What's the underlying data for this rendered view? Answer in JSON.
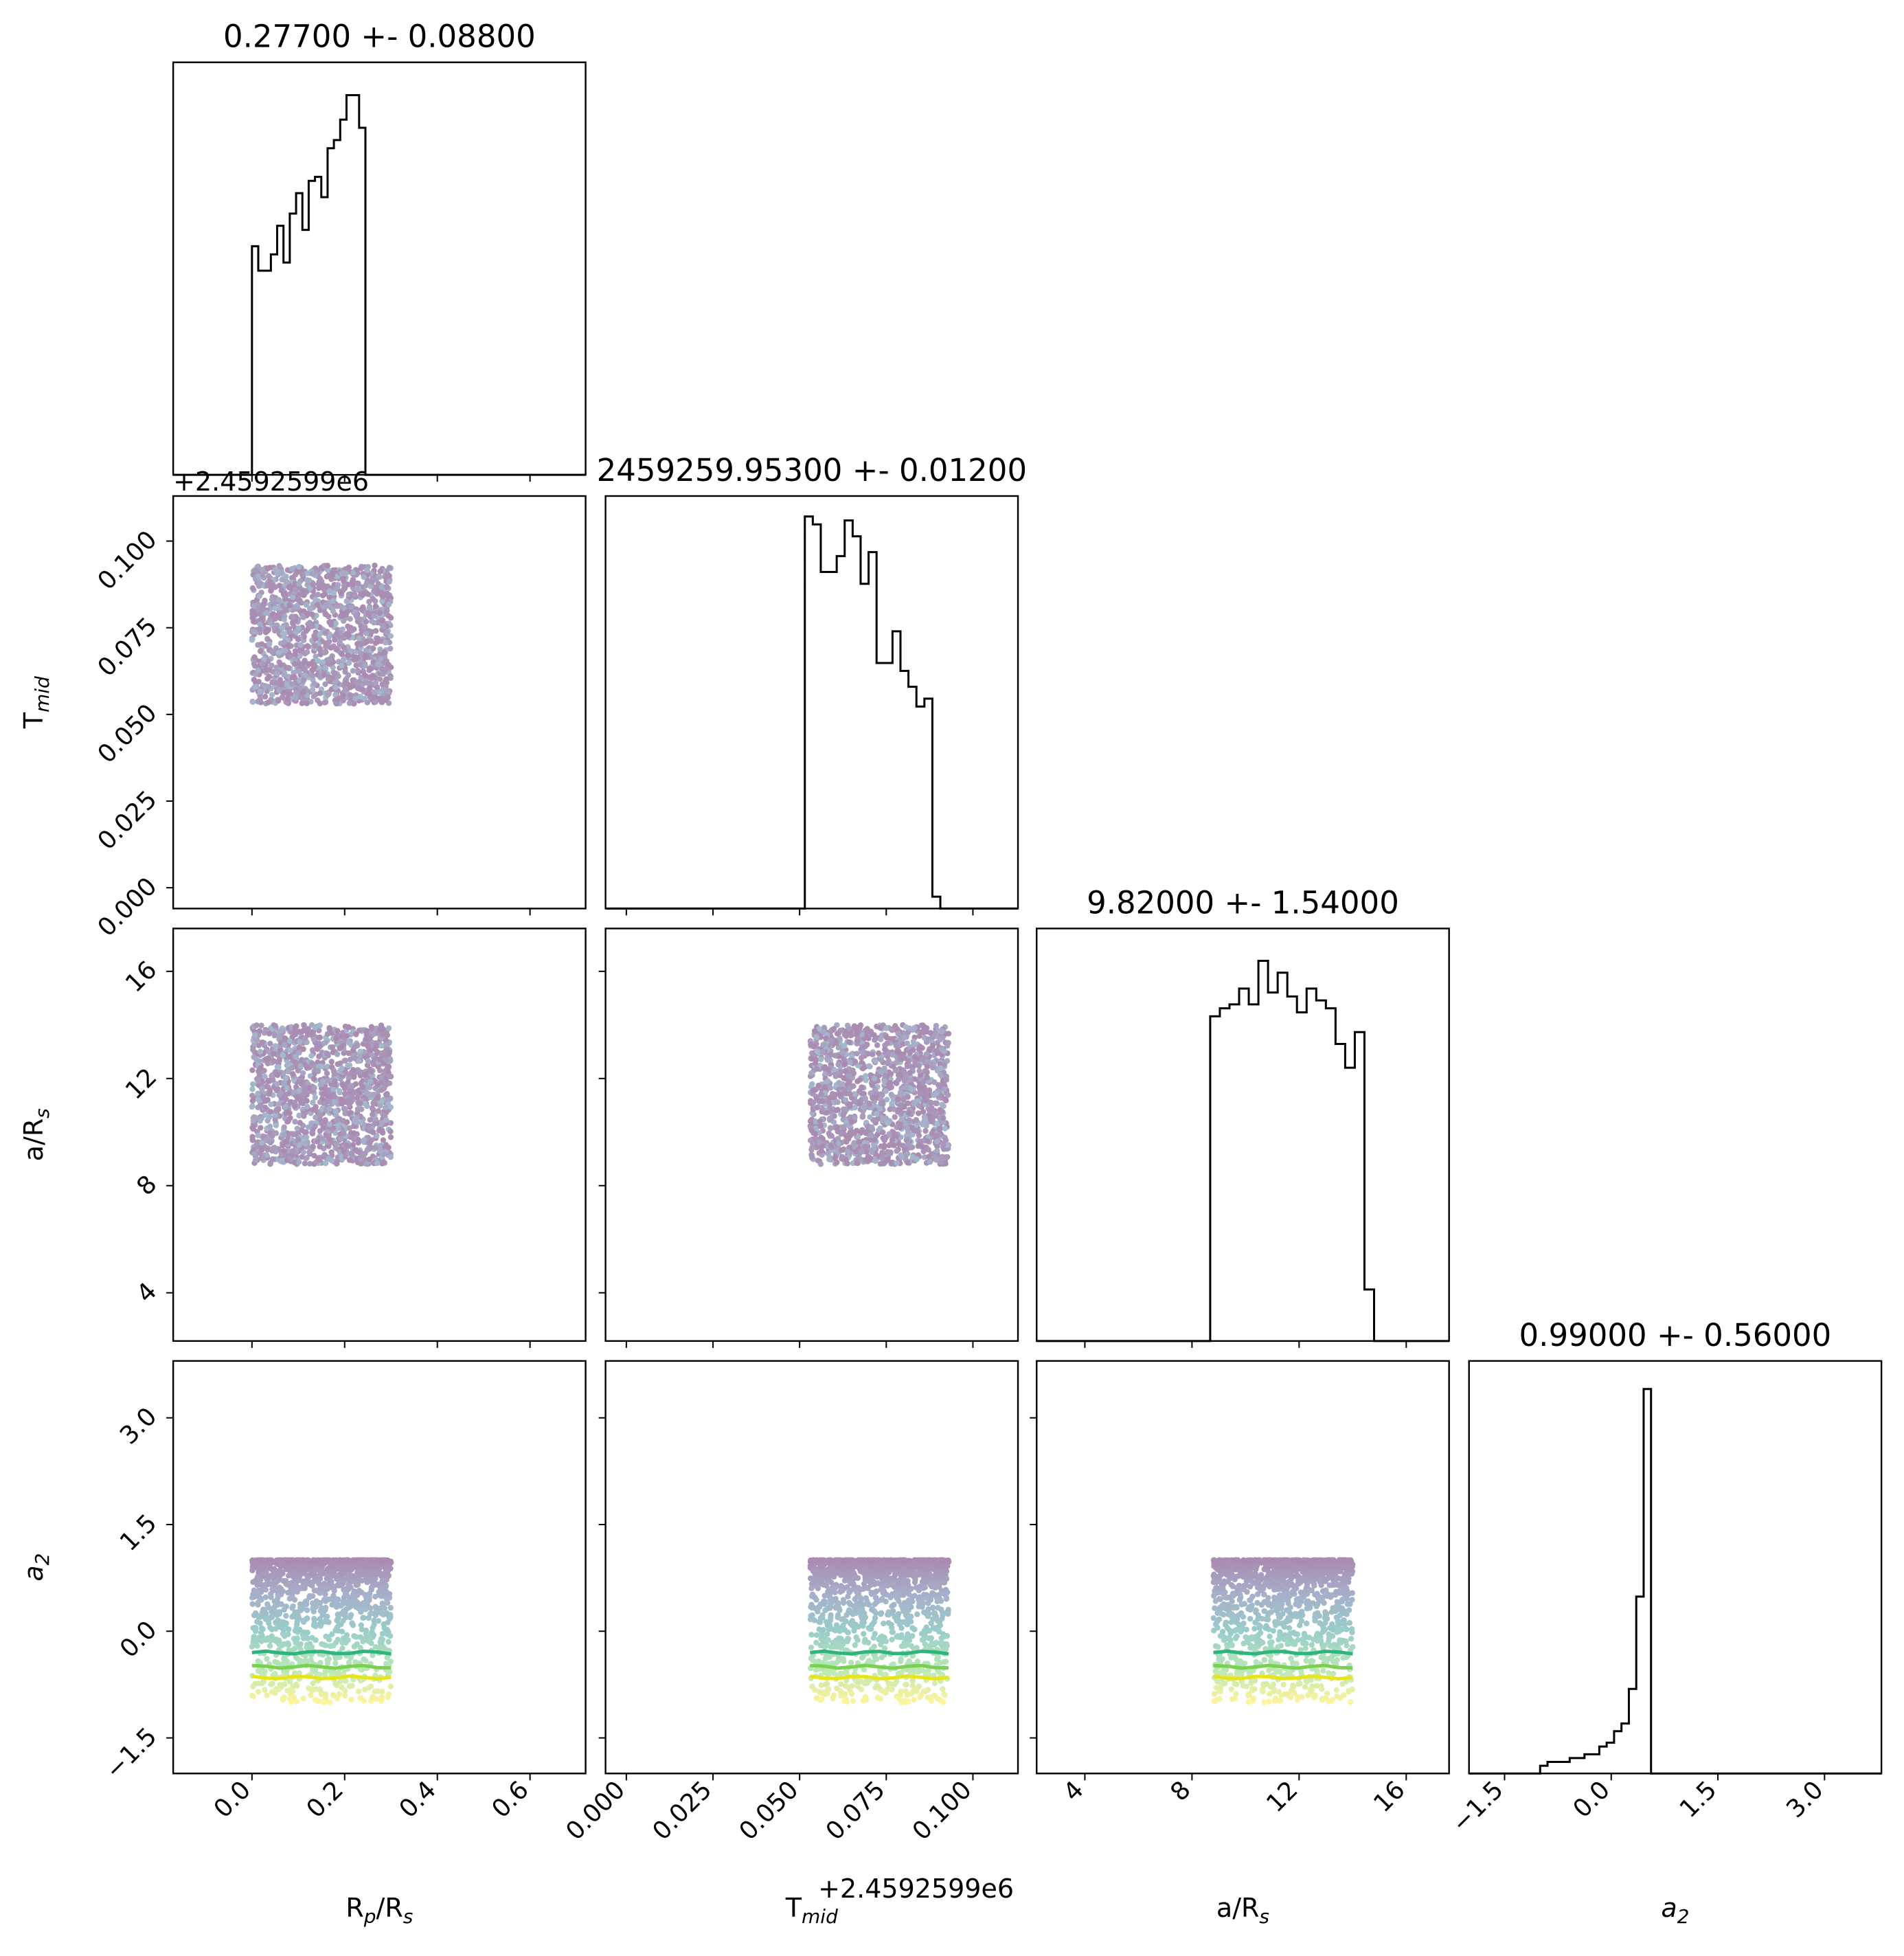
{
  "chart_data": {
    "type": "corner",
    "parameters": [
      {
        "key": "rp",
        "label": "R",
        "label_sub": "p",
        "label_tail": "/R",
        "label_sub2": "s"
      },
      {
        "key": "tmid",
        "label": "T",
        "label_sub": "mid",
        "label_tail": "",
        "label_sub2": ""
      },
      {
        "key": "ars",
        "label": "a/R",
        "label_sub": "s",
        "label_tail": "",
        "label_sub2": ""
      },
      {
        "key": "a2",
        "label": "a",
        "label_sub": "2",
        "label_tail": "",
        "label_sub2": "",
        "italic": true
      }
    ],
    "titles": [
      "0.27700 +- 0.08800",
      "2459259.95300 +- 0.01200",
      "9.82000 +- 1.54000",
      "0.99000 +- 0.56000"
    ],
    "offset_text": "+2.4592599e6",
    "ranges": [
      [
        -0.17,
        0.72
      ],
      [
        -0.006,
        0.113
      ],
      [
        2.2,
        17.6
      ],
      [
        -2.0,
        3.8
      ]
    ],
    "ticks": [
      {
        "values": [
          0.0,
          0.2,
          0.4,
          0.6
        ],
        "labels": [
          "0.0",
          "0.2",
          "0.4",
          "0.6"
        ]
      },
      {
        "values": [
          0.0,
          0.025,
          0.05,
          0.075,
          0.1
        ],
        "labels": [
          "0.000",
          "0.025",
          "0.050",
          "0.075",
          "0.100"
        ]
      },
      {
        "values": [
          4,
          8,
          12,
          16
        ],
        "labels": [
          "4",
          "8",
          "12",
          "16"
        ]
      },
      {
        "values": [
          -1.5,
          0.0,
          1.5,
          3.0
        ],
        "labels": [
          "−1.5",
          "0.0",
          "1.5",
          "3.0"
        ]
      }
    ],
    "histograms": [
      {
        "bin_start": 0.0,
        "bin_width": 0.0136,
        "counts": [
          0.56,
          0.5,
          0.5,
          0.54,
          0.61,
          0.52,
          0.64,
          0.69,
          0.6,
          0.72,
          0.73,
          0.68,
          0.8,
          0.82,
          0.87,
          0.93,
          0.93,
          0.85,
          0.0
        ],
        "ymax": 0.97
      },
      {
        "bin_start": 0.0515,
        "bin_width": 0.0023,
        "counts": [
          0.99,
          0.97,
          0.85,
          0.85,
          0.89,
          0.98,
          0.94,
          0.82,
          0.9,
          0.62,
          0.62,
          0.7,
          0.6,
          0.56,
          0.51,
          0.53,
          0.03,
          0.0
        ],
        "ymax": 1.0
      },
      {
        "bin_start": 8.68,
        "bin_width": 0.36,
        "counts": [
          0.82,
          0.84,
          0.85,
          0.89,
          0.85,
          0.96,
          0.88,
          0.93,
          0.87,
          0.83,
          0.89,
          0.86,
          0.84,
          0.75,
          0.69,
          0.78,
          0.13,
          0.0
        ],
        "ymax": 1.0
      },
      {
        "bin_start": -1.0,
        "bin_width": 0.104,
        "counts": [
          0.02,
          0.03,
          0.03,
          0.03,
          0.04,
          0.04,
          0.05,
          0.05,
          0.07,
          0.08,
          0.11,
          0.13,
          0.22,
          0.46,
          1.0,
          0.0
        ],
        "ymax": 1.03
      }
    ],
    "contour_levels_a2": [
      -0.3,
      -0.5,
      -0.65
    ],
    "contour_colors": [
      "#2fb47c",
      "#7ad151",
      "#e8e41a"
    ],
    "colormap": "viridis",
    "prior_box": {
      "rp": [
        0.0,
        0.3
      ],
      "tmid": [
        0.053,
        0.093
      ],
      "ars": [
        8.8,
        14.0
      ],
      "a2": [
        -1.0,
        1.0
      ]
    }
  }
}
